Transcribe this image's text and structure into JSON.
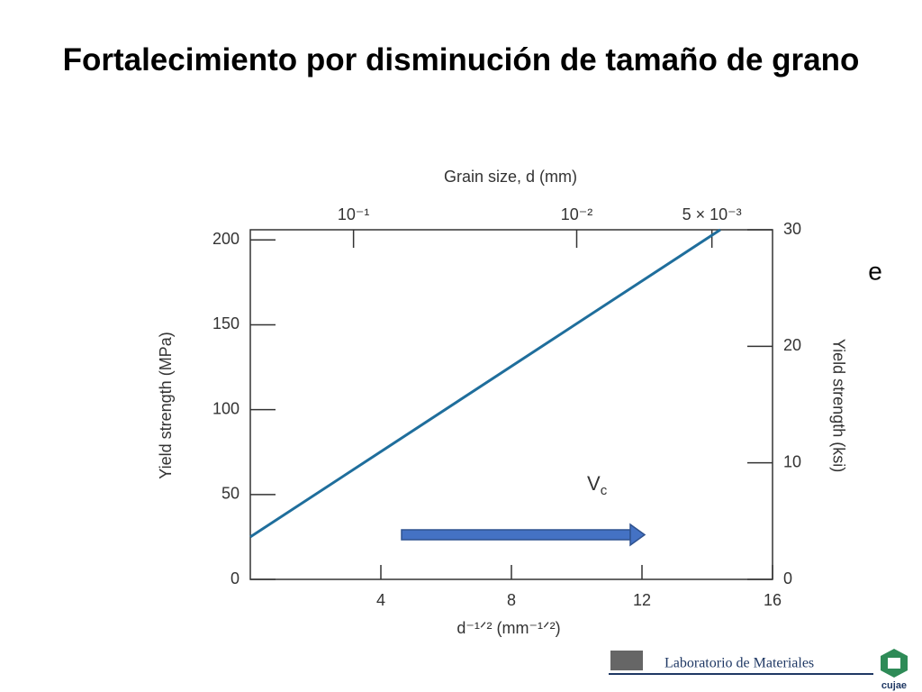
{
  "chart_data": {
    "type": "line",
    "title": "Fortalecimiento por disminución de tamaño de grano",
    "x_label": "d⁻¹ᐟ² (mm⁻¹ᐟ²)",
    "x2_label": "Grain size, d (mm)",
    "y_label": "Yield strength (MPa)",
    "y2_label": "Yield strength (ksi)",
    "x": [
      0,
      14.4
    ],
    "values": [
      25,
      206
    ],
    "color": "#1f6e9c",
    "xlim": [
      0,
      16
    ],
    "xticks": [
      4,
      8,
      12,
      16
    ],
    "x2scale": "inverse-sqrt",
    "x2ticks": [
      {
        "value": 0.1,
        "label": "10⁻¹"
      },
      {
        "value": 0.01,
        "label": "10⁻²"
      },
      {
        "value": 0.005,
        "label": "5 × 10⁻³"
      }
    ],
    "ylim": [
      0,
      206
    ],
    "yticks": [
      0,
      50,
      100,
      150,
      200
    ],
    "y2lim": [
      0,
      30
    ],
    "y2ticks": [
      0,
      10,
      20,
      30
    ],
    "annotation": {
      "main": "V",
      "sub": "c"
    },
    "side_note": "e"
  },
  "footer": {
    "lab": "Laboratorio de Materiales",
    "logo_text": "cujae"
  }
}
